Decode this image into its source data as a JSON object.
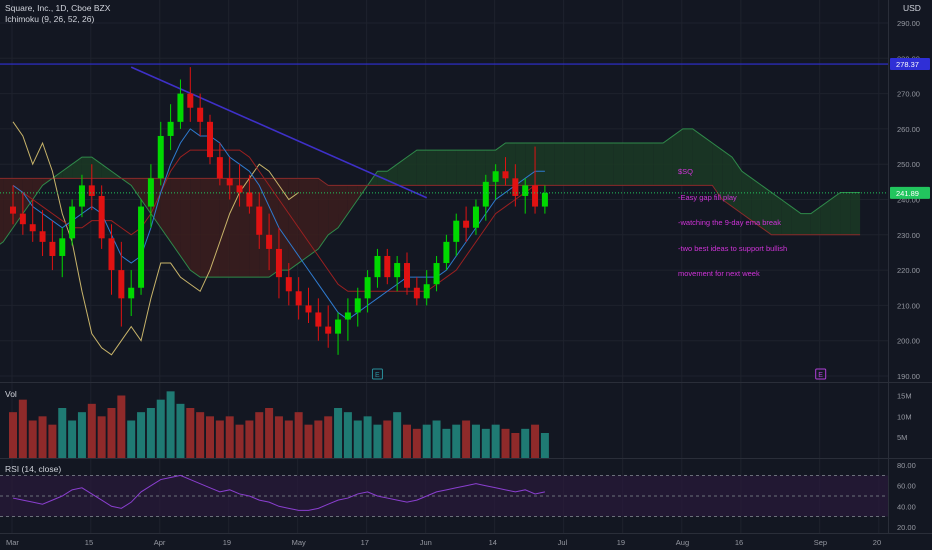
{
  "header": {
    "symbol": "Square, Inc., 1D, Cboe BZX",
    "indicator": "Ichimoku (9, 26, 52, 26)",
    "currency": "USD"
  },
  "volume_label": "Vol",
  "rsi_label": "RSI (14, close)",
  "note": {
    "lines": [
      "$SQ",
      "-Easy gap fill play",
      "-watching the 9-day ema break",
      "-two best ideas to support bullish",
      "movement for next week"
    ]
  },
  "colors": {
    "background": "#131722",
    "up": "#00d900",
    "down": "#e01212",
    "vol_up": "#1f7a73",
    "vol_down": "#8f2a2a",
    "horizontal_line": "#2f2fd6",
    "trend_line": "#3e30c8",
    "conversion_line": "#2e7bd0",
    "base_line": "#9b2020",
    "lagging_span": "#c8b46a",
    "cloud_green": "#1b3a25",
    "cloud_red": "#3c1d1d",
    "rsi": "#8a3fcf",
    "note": "#d033d9",
    "current_price": "#22c55e"
  },
  "chart_data": [
    {
      "type": "candlestick",
      "title": "Square, Inc., 1D, Cboe BZX",
      "ylabel": "USD",
      "ylim": [
        188,
        292
      ],
      "y_ticks": [
        190,
        200,
        210,
        220,
        230,
        240,
        250,
        260,
        270,
        280,
        290
      ],
      "x_ticks": [
        "Mar",
        "15",
        "Apr",
        "19",
        "May",
        "17",
        "Jun",
        "14",
        "Jul",
        "19",
        "Aug",
        "16",
        "Sep",
        "20"
      ],
      "price_labels": {
        "horizontal_line": "278.37",
        "last_price": "241.89"
      },
      "horizontal_line": 278.37,
      "trend_line": {
        "from": [
          12,
          277.5
        ],
        "to": [
          42,
          240.5
        ]
      },
      "earnings_markers": [
        {
          "x": 37,
          "label": "E"
        },
        {
          "x": 82,
          "label": "E"
        }
      ],
      "candles": [
        [
          238,
          244,
          233,
          236
        ],
        [
          236,
          242,
          230,
          233
        ],
        [
          233,
          240,
          228,
          231
        ],
        [
          231,
          237,
          224,
          228
        ],
        [
          228,
          234,
          220,
          224
        ],
        [
          224,
          232,
          218,
          229
        ],
        [
          229,
          240,
          227,
          238
        ],
        [
          238,
          247,
          235,
          244
        ],
        [
          244,
          250,
          237,
          241
        ],
        [
          241,
          244,
          226,
          229
        ],
        [
          229,
          233,
          213,
          220
        ],
        [
          220,
          228,
          204,
          212
        ],
        [
          212,
          220,
          207,
          215
        ],
        [
          215,
          240,
          213,
          238
        ],
        [
          238,
          250,
          232,
          246
        ],
        [
          246,
          262,
          244,
          258
        ],
        [
          258,
          267,
          254,
          262
        ],
        [
          262,
          274,
          260,
          270
        ],
        [
          270,
          277.5,
          262,
          266
        ],
        [
          266,
          270,
          258,
          262
        ],
        [
          262,
          264,
          250,
          252
        ],
        [
          252,
          256,
          244,
          246
        ],
        [
          246,
          252,
          240,
          244
        ],
        [
          244,
          250,
          238,
          242
        ],
        [
          242,
          247,
          236,
          238
        ],
        [
          238,
          242,
          226,
          230
        ],
        [
          230,
          236,
          220,
          226
        ],
        [
          226,
          232,
          212,
          218
        ],
        [
          218,
          222,
          210,
          214
        ],
        [
          214,
          218,
          206,
          210
        ],
        [
          210,
          215,
          205,
          208
        ],
        [
          208,
          212,
          200,
          204
        ],
        [
          204,
          210,
          198,
          202
        ],
        [
          202,
          208,
          196,
          206
        ],
        [
          206,
          212,
          200,
          208
        ],
        [
          208,
          215,
          204,
          212
        ],
        [
          212,
          220,
          208,
          218
        ],
        [
          218,
          226,
          215,
          224
        ],
        [
          224,
          226,
          216,
          218
        ],
        [
          218,
          224,
          214,
          222
        ],
        [
          222,
          225,
          213,
          215
        ],
        [
          215,
          218,
          210,
          212
        ],
        [
          212,
          220,
          210,
          216
        ],
        [
          216,
          224,
          214,
          222
        ],
        [
          222,
          230,
          220,
          228
        ],
        [
          228,
          236,
          224,
          234
        ],
        [
          234,
          238,
          228,
          232
        ],
        [
          232,
          240,
          230,
          238
        ],
        [
          238,
          247,
          234,
          245
        ],
        [
          245,
          250,
          240,
          248
        ],
        [
          248,
          252,
          244,
          246
        ],
        [
          246,
          250,
          238,
          241
        ],
        [
          241,
          246,
          236,
          244
        ],
        [
          244,
          255,
          236,
          238
        ],
        [
          238,
          244,
          236,
          241.89
        ]
      ],
      "series": [
        {
          "name": "Conversion Line",
          "values": [
            244,
            242,
            238,
            236,
            234,
            232,
            234,
            236,
            238,
            236,
            230,
            224,
            222,
            224,
            232,
            242,
            250,
            256,
            260,
            258,
            258,
            256,
            252,
            250,
            248,
            244,
            238,
            232,
            228,
            224,
            220,
            216,
            212,
            208,
            206,
            208,
            210,
            212,
            214,
            216,
            218,
            218,
            218,
            218,
            220,
            224,
            228,
            232,
            236,
            240,
            242,
            244,
            246,
            248,
            248
          ]
        },
        {
          "name": "Base Line",
          "values": [
            244,
            242,
            240,
            238,
            236,
            234,
            232,
            232,
            234,
            234,
            234,
            232,
            230,
            232,
            236,
            242,
            248,
            252,
            254,
            254,
            254,
            254,
            254,
            254,
            252,
            248,
            244,
            240,
            236,
            232,
            228,
            224,
            220,
            216,
            214,
            214,
            214,
            214,
            214,
            214,
            214,
            214,
            214,
            216,
            218,
            220,
            224,
            228,
            232,
            236,
            238,
            240,
            242,
            244,
            244
          ]
        },
        {
          "name": "Lagging Span",
          "values": [
            262,
            258,
            250,
            256,
            248,
            236,
            228,
            214,
            202,
            198,
            196,
            200,
            204,
            200,
            212,
            222,
            222,
            218,
            216,
            214,
            220,
            228,
            236,
            242,
            246,
            250,
            248,
            244,
            240,
            242
          ]
        },
        {
          "name": "Leading Span A",
          "values": [
            236,
            234,
            232,
            230,
            228,
            226,
            226,
            228,
            232,
            236,
            240,
            244,
            246,
            248,
            250,
            252,
            252,
            250,
            248,
            246,
            244,
            240,
            236,
            232,
            228,
            224,
            220,
            218,
            218,
            218,
            218,
            218,
            218,
            218,
            218,
            220,
            220,
            222,
            224,
            226,
            230,
            232,
            236,
            240,
            244,
            248,
            248,
            250,
            252,
            254,
            254,
            254,
            254,
            254,
            254,
            254,
            254,
            254,
            256,
            256,
            256,
            256,
            256,
            256,
            256,
            256,
            256,
            256,
            256,
            256,
            256,
            256,
            256,
            256,
            256,
            258,
            260,
            260,
            258,
            256,
            254,
            252,
            248,
            246,
            244,
            242,
            240,
            238,
            236,
            236,
            238,
            240,
            242,
            242,
            242
          ]
        },
        {
          "name": "Leading Span B",
          "values": [
            246,
            246,
            246,
            246,
            246,
            246,
            246,
            246,
            246,
            246,
            246,
            246,
            246,
            246,
            246,
            246,
            246,
            246,
            246,
            246,
            246,
            246,
            246,
            246,
            246,
            246,
            246,
            246,
            246,
            246,
            246,
            246,
            246,
            246,
            246,
            246,
            246,
            246,
            246,
            246,
            244,
            244,
            244,
            244,
            244,
            244,
            244,
            244,
            244,
            244,
            244,
            244,
            244,
            244,
            244,
            244,
            244,
            244,
            244,
            244,
            244,
            244,
            244,
            244,
            244,
            244,
            244,
            244,
            244,
            244,
            244,
            244,
            244,
            244,
            244,
            244,
            244,
            244,
            244,
            244,
            240,
            238,
            236,
            234,
            232,
            230,
            230,
            230,
            230,
            230,
            230,
            230,
            230,
            230,
            230
          ]
        }
      ]
    },
    {
      "type": "bar",
      "title": "Vol",
      "y_ticks": [
        "5M",
        "10M",
        "15M"
      ],
      "ylim": [
        0,
        18
      ],
      "values": [
        11,
        14,
        9,
        10,
        8,
        12,
        9,
        11,
        13,
        10,
        12,
        15,
        9,
        11,
        12,
        14,
        16,
        13,
        12,
        11,
        10,
        9,
        10,
        8,
        9,
        11,
        12,
        10,
        9,
        11,
        8,
        9,
        10,
        12,
        11,
        9,
        10,
        8,
        9,
        11,
        8,
        7,
        8,
        9,
        7,
        8,
        9,
        8,
        7,
        8,
        7,
        6,
        7,
        8,
        6
      ]
    },
    {
      "type": "line",
      "title": "RSI (14, close)",
      "y_ticks": [
        20,
        40,
        60,
        80
      ],
      "ylim": [
        14,
        86
      ],
      "bands": [
        30,
        50,
        70
      ],
      "series": [
        {
          "name": "RSI",
          "values": [
            48,
            46,
            44,
            42,
            46,
            50,
            56,
            58,
            52,
            46,
            40,
            38,
            44,
            54,
            60,
            66,
            68,
            70,
            66,
            62,
            58,
            54,
            56,
            52,
            50,
            46,
            44,
            40,
            38,
            36,
            36,
            38,
            42,
            46,
            48,
            52,
            54,
            50,
            48,
            46,
            44,
            46,
            50,
            54,
            56,
            58,
            60,
            62,
            60,
            58,
            56,
            54,
            56,
            52,
            54
          ]
        }
      ]
    }
  ]
}
